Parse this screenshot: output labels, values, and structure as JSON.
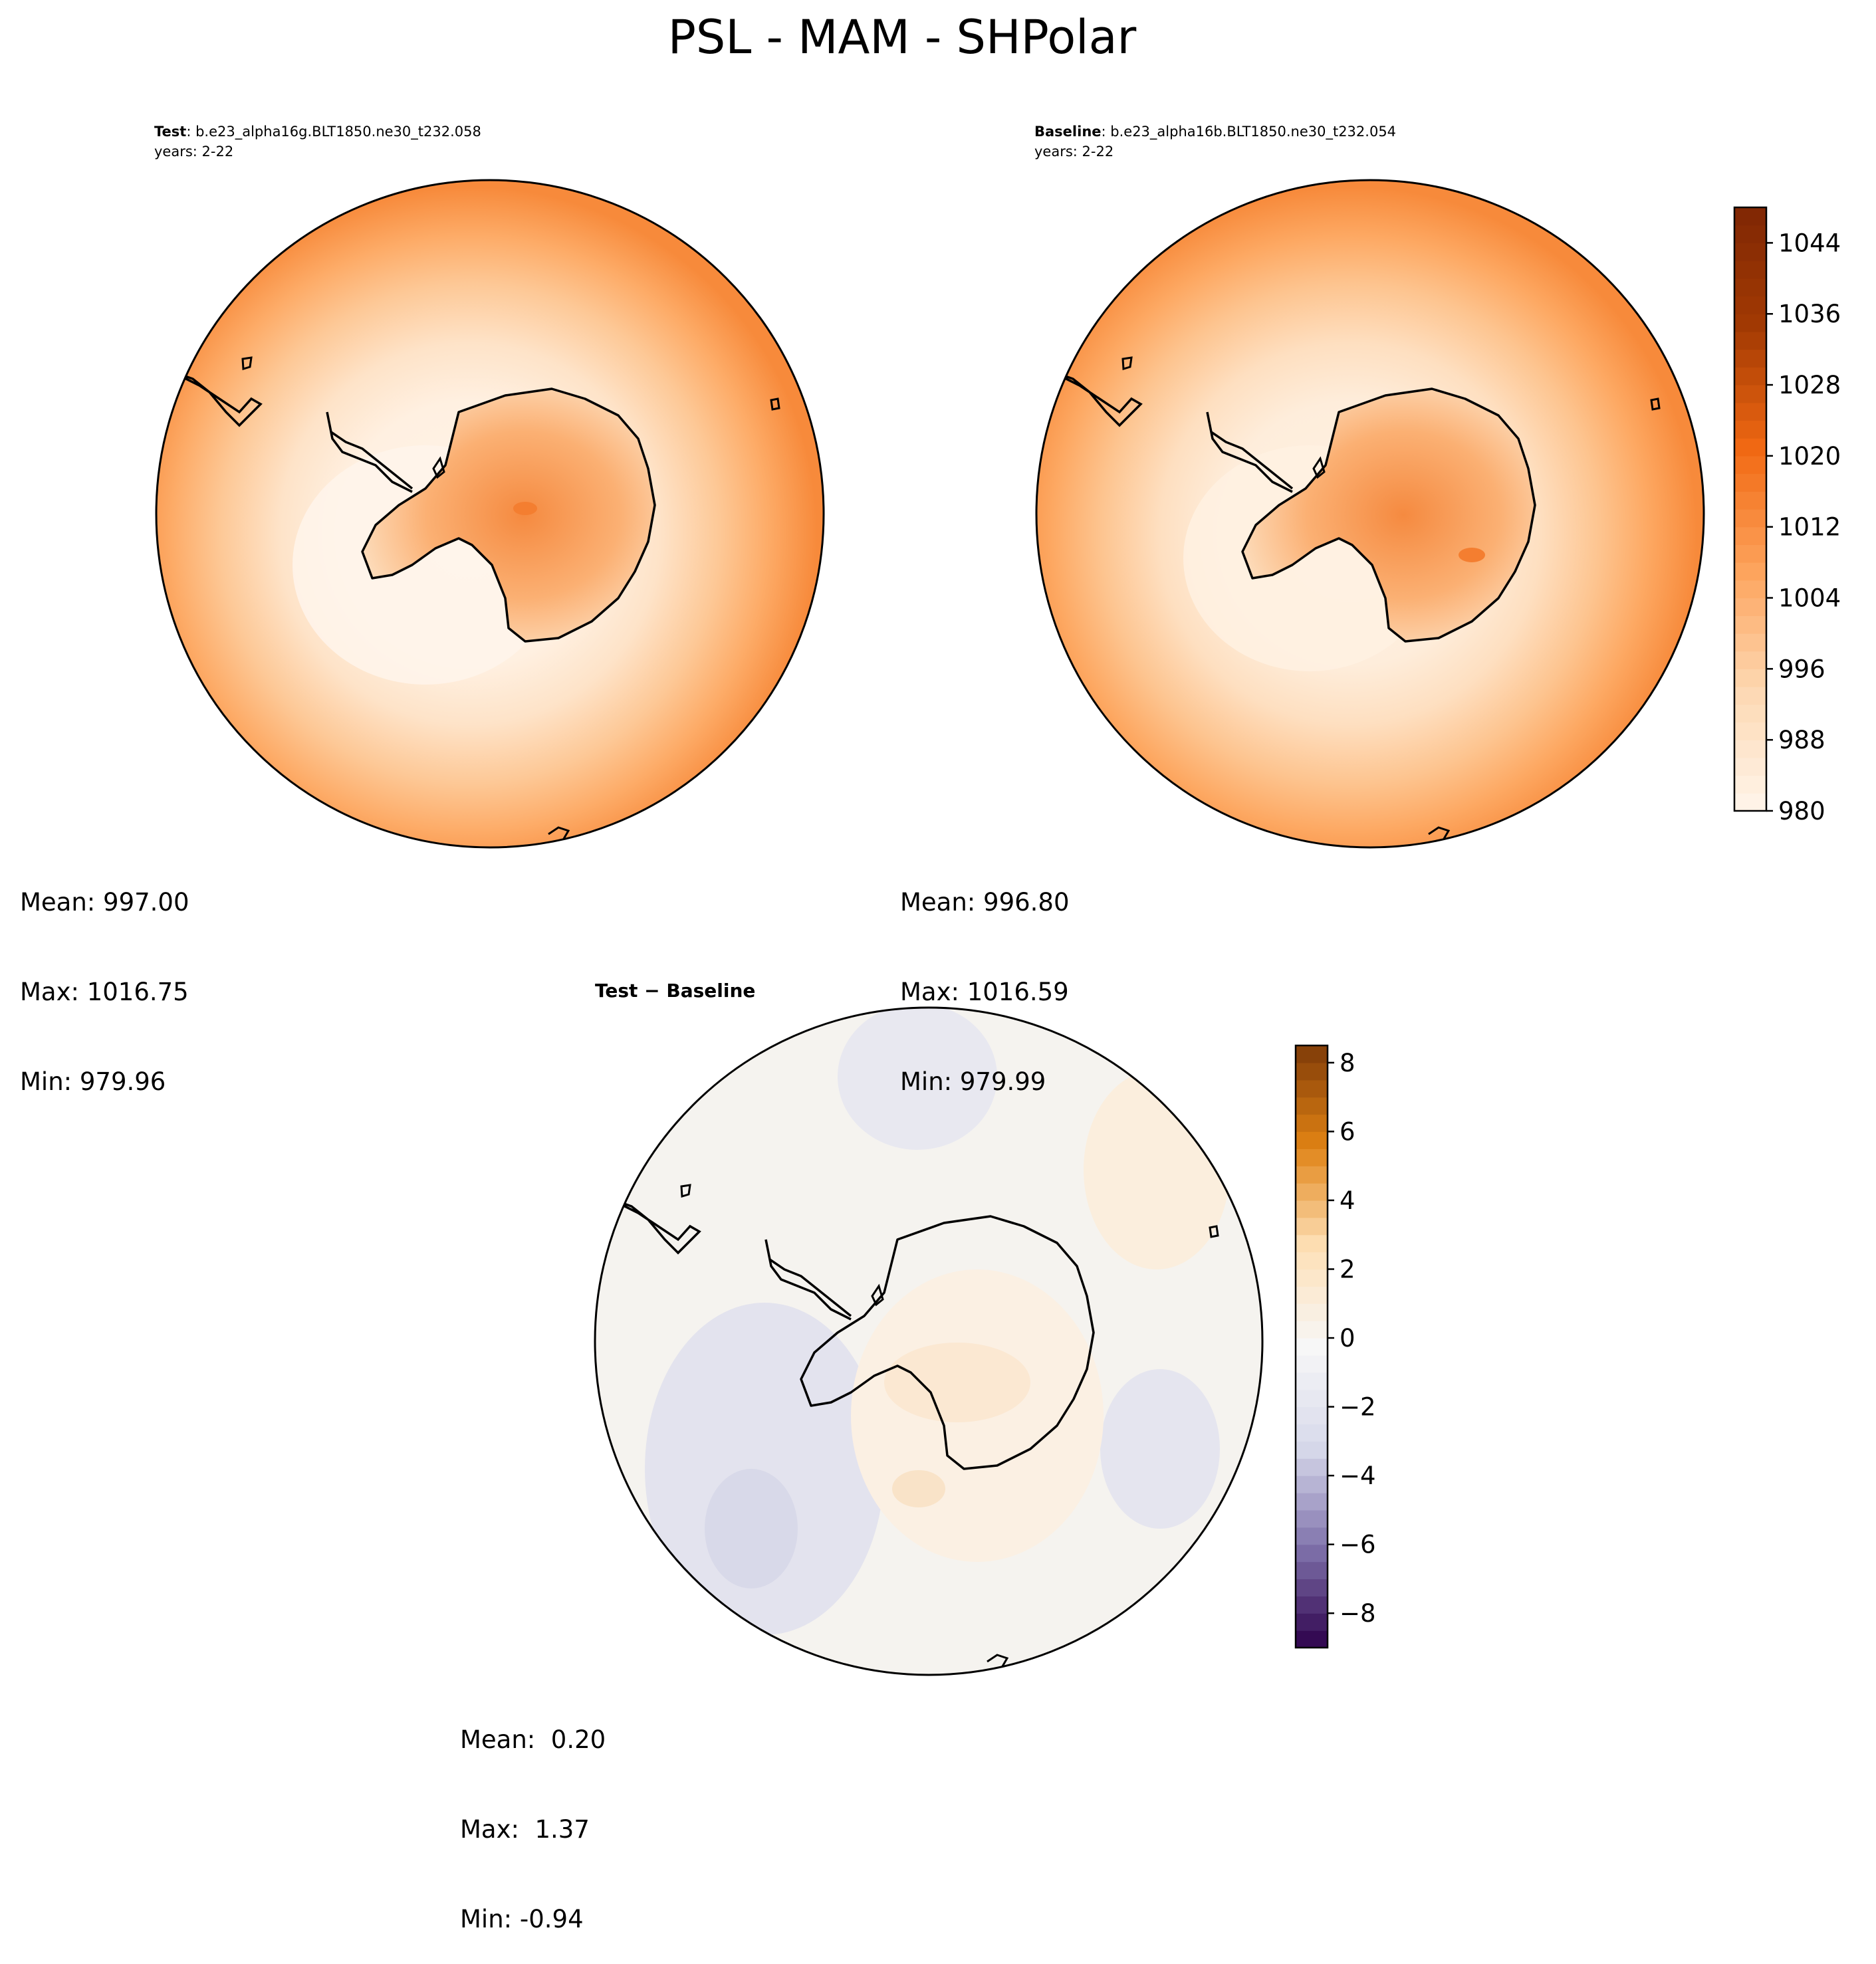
{
  "chart_data": {
    "type": "filled-contour-map",
    "title": "PSL - MAM - SHPolar",
    "panels": [
      {
        "id": "test",
        "label_bold": "Test",
        "case_name": ": b.e23_alpha16g.BLT1850.ne30_t232.058",
        "years": "years: 2-22",
        "stats": {
          "mean": "Mean: 997.00",
          "max": "Max: 1016.75",
          "min": "Min: 979.96"
        }
      },
      {
        "id": "baseline",
        "label_bold": "Baseline",
        "case_name": ": b.e23_alpha16b.BLT1850.ne30_t232.054",
        "years": "years: 2-22",
        "stats": {
          "mean": "Mean: 996.80",
          "max": "Max: 1016.59",
          "min": "Min: 979.99"
        }
      },
      {
        "id": "difference",
        "label_bold": "Test − Baseline",
        "stats": {
          "mean": "Mean:  0.20",
          "max": "Max:  1.37",
          "min": "Min: -0.94"
        }
      }
    ],
    "colorbars": [
      {
        "id": "main",
        "colormap": "Oranges",
        "vmin": 980,
        "vmax": 1048,
        "levels": 35,
        "ticks": [
          980,
          988,
          996,
          1004,
          1012,
          1020,
          1028,
          1036,
          1044
        ],
        "tick_labels": [
          "980",
          "988",
          "996",
          "1004",
          "1012",
          "1020",
          "1028",
          "1036",
          "1044"
        ],
        "colors": [
          "#fff5eb",
          "#fdd8b2",
          "#fda35c",
          "#f16913",
          "#a33a03",
          "#7f2704"
        ]
      },
      {
        "id": "diff",
        "colormap": "PuOr_r",
        "vmin": -9,
        "vmax": 8.5,
        "ticks": [
          -8,
          -6,
          -4,
          -2,
          0,
          2,
          4,
          6,
          8
        ],
        "tick_labels": [
          "−8",
          "−6",
          "−4",
          "−2",
          "0",
          "2",
          "4",
          "6",
          "8"
        ],
        "colors": [
          "#2d004b",
          "#8073ac",
          "#d8daeb",
          "#f7f7f7",
          "#fee0b6",
          "#e08214",
          "#7f3b08"
        ]
      }
    ]
  }
}
